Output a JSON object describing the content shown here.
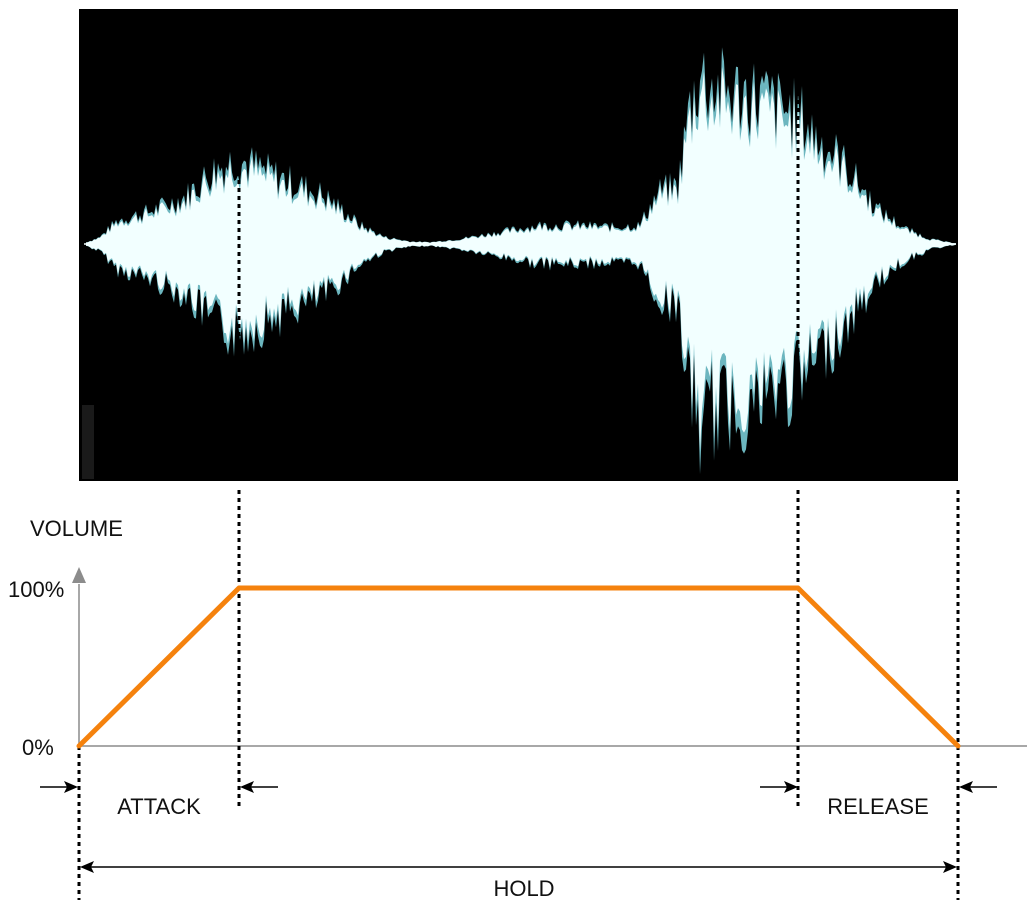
{
  "diagram": {
    "labels": {
      "volume": "VOLUME",
      "tick_100": "100%",
      "tick_0": "0%",
      "attack": "ATTACK",
      "release": "RELEASE",
      "hold": "HOLD"
    },
    "colors": {
      "envelope": "#F5820D",
      "waveform": "#F2FFFF",
      "waveform_edge": "#7FD6E0",
      "waveform_bg": "#000000",
      "axis": "#8C8C8C",
      "guide": "#000000"
    },
    "envelope_points": [
      {
        "time": 0.0,
        "volume": 0
      },
      {
        "time": 0.182,
        "volume": 100
      },
      {
        "time": 0.818,
        "volume": 100
      },
      {
        "time": 1.0,
        "volume": 0
      }
    ]
  }
}
